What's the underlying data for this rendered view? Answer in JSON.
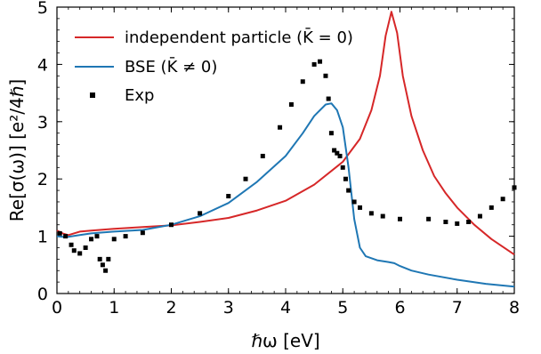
{
  "chart_data": {
    "type": "line",
    "xlabel": "ℏω [eV]",
    "ylabel": "Re[σ(ω)] [e²/4ℏ]",
    "xlim": [
      0,
      8
    ],
    "ylim": [
      0,
      5
    ],
    "xticks": [
      0,
      1,
      2,
      3,
      4,
      5,
      6,
      7,
      8
    ],
    "yticks": [
      0,
      1,
      2,
      3,
      4,
      5
    ],
    "legend_position": "top-left",
    "series": [
      {
        "name": "independent particle (K̄ = 0)",
        "color": "#d62728",
        "style": "line",
        "points": [
          [
            0,
            1.1
          ],
          [
            0.1,
            1.05
          ],
          [
            0.2,
            1.02
          ],
          [
            0.4,
            1.08
          ],
          [
            0.6,
            1.1
          ],
          [
            1,
            1.13
          ],
          [
            1.5,
            1.16
          ],
          [
            2,
            1.19
          ],
          [
            2.5,
            1.25
          ],
          [
            3,
            1.32
          ],
          [
            3.5,
            1.45
          ],
          [
            4,
            1.62
          ],
          [
            4.5,
            1.9
          ],
          [
            5,
            2.3
          ],
          [
            5.3,
            2.7
          ],
          [
            5.5,
            3.2
          ],
          [
            5.65,
            3.8
          ],
          [
            5.75,
            4.5
          ],
          [
            5.85,
            4.92
          ],
          [
            5.95,
            4.55
          ],
          [
            6.05,
            3.8
          ],
          [
            6.2,
            3.1
          ],
          [
            6.4,
            2.5
          ],
          [
            6.6,
            2.05
          ],
          [
            6.8,
            1.75
          ],
          [
            7,
            1.5
          ],
          [
            7.3,
            1.2
          ],
          [
            7.6,
            0.95
          ],
          [
            8,
            0.68
          ]
        ]
      },
      {
        "name": "BSE (K̄ ≠ 0)",
        "color": "#1f77b4",
        "style": "line",
        "points": [
          [
            0,
            1.0
          ],
          [
            0.1,
            0.99
          ],
          [
            0.2,
            0.99
          ],
          [
            0.4,
            1.02
          ],
          [
            0.6,
            1.05
          ],
          [
            1,
            1.08
          ],
          [
            1.5,
            1.11
          ],
          [
            2,
            1.2
          ],
          [
            2.5,
            1.35
          ],
          [
            3,
            1.58
          ],
          [
            3.5,
            1.95
          ],
          [
            4,
            2.4
          ],
          [
            4.3,
            2.8
          ],
          [
            4.5,
            3.1
          ],
          [
            4.7,
            3.3
          ],
          [
            4.8,
            3.32
          ],
          [
            4.9,
            3.2
          ],
          [
            5,
            2.9
          ],
          [
            5.1,
            2.2
          ],
          [
            5.2,
            1.3
          ],
          [
            5.3,
            0.8
          ],
          [
            5.4,
            0.65
          ],
          [
            5.6,
            0.58
          ],
          [
            5.8,
            0.55
          ],
          [
            5.9,
            0.53
          ],
          [
            6,
            0.48
          ],
          [
            6.2,
            0.4
          ],
          [
            6.5,
            0.33
          ],
          [
            7,
            0.24
          ],
          [
            7.5,
            0.17
          ],
          [
            8,
            0.12
          ]
        ]
      },
      {
        "name": "Exp",
        "color": "#000000",
        "style": "markers",
        "points": [
          [
            0.05,
            1.05
          ],
          [
            0.15,
            1.0
          ],
          [
            0.25,
            0.85
          ],
          [
            0.3,
            0.75
          ],
          [
            0.4,
            0.7
          ],
          [
            0.5,
            0.8
          ],
          [
            0.6,
            0.95
          ],
          [
            0.7,
            1.0
          ],
          [
            0.75,
            0.6
          ],
          [
            0.8,
            0.5
          ],
          [
            0.85,
            0.4
          ],
          [
            0.9,
            0.6
          ],
          [
            1,
            0.95
          ],
          [
            1.2,
            1.0
          ],
          [
            1.5,
            1.06
          ],
          [
            2,
            1.2
          ],
          [
            2.5,
            1.4
          ],
          [
            3,
            1.7
          ],
          [
            3.3,
            2.0
          ],
          [
            3.6,
            2.4
          ],
          [
            3.9,
            2.9
          ],
          [
            4.1,
            3.3
          ],
          [
            4.3,
            3.7
          ],
          [
            4.5,
            4.0
          ],
          [
            4.6,
            4.05
          ],
          [
            4.7,
            3.8
          ],
          [
            4.75,
            3.4
          ],
          [
            4.8,
            2.8
          ],
          [
            4.85,
            2.5
          ],
          [
            4.9,
            2.45
          ],
          [
            4.95,
            2.4
          ],
          [
            5.0,
            2.2
          ],
          [
            5.05,
            2.0
          ],
          [
            5.1,
            1.8
          ],
          [
            5.2,
            1.6
          ],
          [
            5.3,
            1.5
          ],
          [
            5.5,
            1.4
          ],
          [
            5.7,
            1.35
          ],
          [
            6,
            1.3
          ],
          [
            6.5,
            1.3
          ],
          [
            6.8,
            1.25
          ],
          [
            7,
            1.22
          ],
          [
            7.2,
            1.25
          ],
          [
            7.4,
            1.35
          ],
          [
            7.6,
            1.5
          ],
          [
            7.8,
            1.65
          ],
          [
            8,
            1.85
          ]
        ]
      }
    ]
  }
}
